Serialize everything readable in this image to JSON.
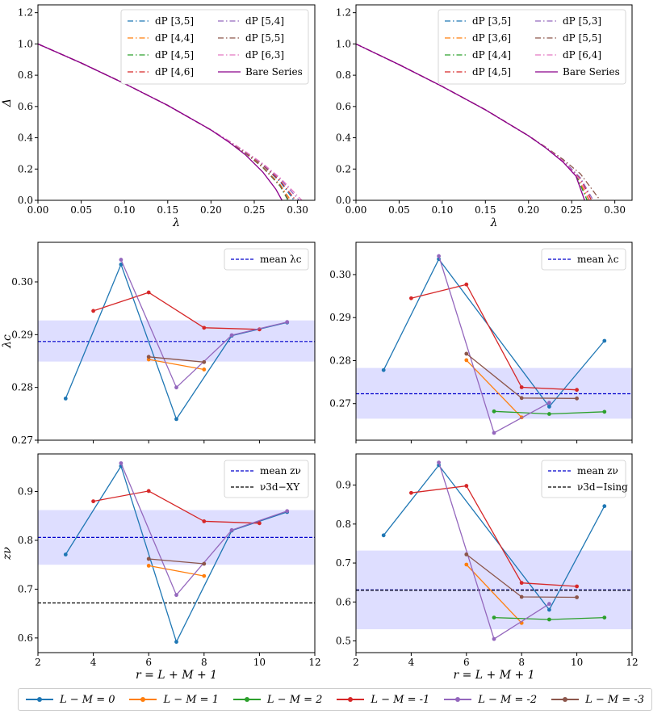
{
  "chart_data": [
    {
      "type": "line",
      "panel": "top-left",
      "xlabel": "λ",
      "ylabel": "Δ",
      "xlim": [
        0,
        0.32
      ],
      "ylim": [
        0,
        1.25
      ],
      "xticks": [
        "0.00",
        "0.05",
        "0.10",
        "0.15",
        "0.20",
        "0.25",
        "0.30"
      ],
      "yticks": [
        "0.0",
        "0.2",
        "0.4",
        "0.6",
        "0.8",
        "1.0",
        "1.2"
      ],
      "legend_position": "top-right",
      "series": [
        {
          "name": "dP [3,5]",
          "color": "#1f77b4",
          "style": "dashdot",
          "x": [
            0,
            0.05,
            0.1,
            0.15,
            0.2,
            0.22,
            0.24,
            0.26,
            0.28,
            0.296
          ],
          "y": [
            1.0,
            0.878,
            0.747,
            0.607,
            0.45,
            0.381,
            0.306,
            0.223,
            0.118,
            0.0
          ]
        },
        {
          "name": "dP [4,4]",
          "color": "#ff7f0e",
          "style": "dashdot",
          "x": [
            0,
            0.05,
            0.1,
            0.15,
            0.2,
            0.22,
            0.24,
            0.26,
            0.28,
            0.292
          ],
          "y": [
            1.0,
            0.878,
            0.747,
            0.607,
            0.45,
            0.379,
            0.302,
            0.213,
            0.1,
            0.0
          ]
        },
        {
          "name": "dP [4,5]",
          "color": "#2ca02c",
          "style": "dashdot",
          "x": [
            0,
            0.05,
            0.1,
            0.15,
            0.2,
            0.22,
            0.24,
            0.26,
            0.28,
            0.289
          ],
          "y": [
            1.0,
            0.878,
            0.747,
            0.607,
            0.45,
            0.378,
            0.3,
            0.209,
            0.09,
            0.0
          ]
        },
        {
          "name": "dP [4,6]",
          "color": "#d62728",
          "style": "dashdot",
          "x": [
            0,
            0.05,
            0.1,
            0.15,
            0.2,
            0.22,
            0.24,
            0.26,
            0.28,
            0.298
          ],
          "y": [
            1.0,
            0.878,
            0.747,
            0.607,
            0.45,
            0.381,
            0.307,
            0.226,
            0.125,
            0.0
          ]
        },
        {
          "name": "dP [5,4]",
          "color": "#9467bd",
          "style": "dashdot",
          "x": [
            0,
            0.05,
            0.1,
            0.15,
            0.2,
            0.22,
            0.24,
            0.26,
            0.28,
            0.302
          ],
          "y": [
            1.0,
            0.878,
            0.747,
            0.607,
            0.45,
            0.382,
            0.309,
            0.23,
            0.136,
            0.0
          ]
        },
        {
          "name": "dP [5,5]",
          "color": "#8c564b",
          "style": "dashdot",
          "x": [
            0,
            0.05,
            0.1,
            0.15,
            0.2,
            0.22,
            0.24,
            0.26,
            0.28,
            0.29
          ],
          "y": [
            1.0,
            0.878,
            0.747,
            0.607,
            0.45,
            0.378,
            0.3,
            0.21,
            0.094,
            0.0
          ]
        },
        {
          "name": "dP [6,3]",
          "color": "#e377c2",
          "style": "dashdot",
          "x": [
            0,
            0.05,
            0.1,
            0.15,
            0.2,
            0.22,
            0.24,
            0.26,
            0.28,
            0.305
          ],
          "y": [
            1.0,
            0.878,
            0.747,
            0.607,
            0.45,
            0.383,
            0.311,
            0.234,
            0.143,
            0.0
          ]
        },
        {
          "name": "Bare Series",
          "color": "#8b008b",
          "style": "solid",
          "x": [
            0,
            0.05,
            0.1,
            0.15,
            0.2,
            0.22,
            0.24,
            0.26,
            0.275,
            0.282
          ],
          "y": [
            1.0,
            0.878,
            0.747,
            0.607,
            0.45,
            0.375,
            0.29,
            0.18,
            0.07,
            0.0
          ]
        }
      ]
    },
    {
      "type": "line",
      "panel": "top-right",
      "xlabel": "λ",
      "ylabel": "",
      "xlim": [
        0,
        0.32
      ],
      "ylim": [
        0,
        1.25
      ],
      "xticks": [
        "0.00",
        "0.05",
        "0.10",
        "0.15",
        "0.20",
        "0.25",
        "0.30"
      ],
      "yticks": [
        "0.0",
        "0.2",
        "0.4",
        "0.6",
        "0.8",
        "1.0",
        "1.2"
      ],
      "legend_position": "top-right",
      "series": [
        {
          "name": "dP [3,5]",
          "color": "#1f77b4",
          "style": "dashdot",
          "x": [
            0,
            0.05,
            0.1,
            0.15,
            0.2,
            0.22,
            0.24,
            0.255,
            0.268
          ],
          "y": [
            1.0,
            0.868,
            0.728,
            0.579,
            0.412,
            0.336,
            0.248,
            0.163,
            0.0
          ]
        },
        {
          "name": "dP [3,6]",
          "color": "#ff7f0e",
          "style": "dashdot",
          "x": [
            0,
            0.05,
            0.1,
            0.15,
            0.2,
            0.22,
            0.24,
            0.255,
            0.27
          ],
          "y": [
            1.0,
            0.868,
            0.728,
            0.579,
            0.412,
            0.337,
            0.25,
            0.168,
            0.0
          ]
        },
        {
          "name": "dP [4,4]",
          "color": "#2ca02c",
          "style": "dashdot",
          "x": [
            0,
            0.05,
            0.1,
            0.15,
            0.2,
            0.22,
            0.24,
            0.255,
            0.268
          ],
          "y": [
            1.0,
            0.868,
            0.728,
            0.579,
            0.412,
            0.336,
            0.248,
            0.163,
            0.0
          ]
        },
        {
          "name": "dP [4,5]",
          "color": "#d62728",
          "style": "dashdot",
          "x": [
            0,
            0.05,
            0.1,
            0.15,
            0.2,
            0.22,
            0.24,
            0.26,
            0.273
          ],
          "y": [
            1.0,
            0.868,
            0.728,
            0.579,
            0.412,
            0.338,
            0.253,
            0.14,
            0.0
          ]
        },
        {
          "name": "dP [5,3]",
          "color": "#9467bd",
          "style": "dashdot",
          "x": [
            0,
            0.05,
            0.1,
            0.15,
            0.2,
            0.22,
            0.24,
            0.26,
            0.275
          ],
          "y": [
            1.0,
            0.868,
            0.728,
            0.579,
            0.412,
            0.338,
            0.255,
            0.145,
            0.0
          ]
        },
        {
          "name": "dP [5,5]",
          "color": "#8c564b",
          "style": "dashdot",
          "x": [
            0,
            0.05,
            0.1,
            0.15,
            0.2,
            0.22,
            0.24,
            0.26,
            0.283
          ],
          "y": [
            1.0,
            0.868,
            0.728,
            0.579,
            0.412,
            0.34,
            0.262,
            0.17,
            0.0
          ]
        },
        {
          "name": "dP [6,4]",
          "color": "#e377c2",
          "style": "dashdot",
          "x": [
            0,
            0.05,
            0.1,
            0.15,
            0.2,
            0.22,
            0.24,
            0.26,
            0.271
          ],
          "y": [
            1.0,
            0.868,
            0.728,
            0.579,
            0.412,
            0.337,
            0.251,
            0.13,
            0.0
          ]
        },
        {
          "name": "Bare Series",
          "color": "#8b008b",
          "style": "solid",
          "x": [
            0,
            0.05,
            0.1,
            0.15,
            0.2,
            0.22,
            0.24,
            0.255,
            0.265
          ],
          "y": [
            1.0,
            0.868,
            0.728,
            0.579,
            0.412,
            0.335,
            0.245,
            0.155,
            0.0
          ]
        }
      ]
    },
    {
      "type": "line",
      "panel": "middle-left",
      "xlabel": "",
      "ylabel": "λc",
      "xlim": [
        2,
        12
      ],
      "ylim": [
        0.27,
        0.3075
      ],
      "xticks": [],
      "yticks": [
        "0.27",
        "0.28",
        "0.29",
        "0.30"
      ],
      "legend_position": "top-right",
      "mean_line": {
        "label": "mean λc",
        "value": 0.2887,
        "band": [
          0.2849,
          0.2927
        ]
      },
      "series": [
        {
          "name": "L − M = 0",
          "color": "#1f77b4",
          "x": [
            3,
            5,
            7,
            9,
            11
          ],
          "y": [
            0.2779,
            0.3033,
            0.274,
            0.2898,
            0.2923
          ]
        },
        {
          "name": "L − M = 1",
          "color": "#ff7f0e",
          "x": [
            6,
            8
          ],
          "y": [
            0.2853,
            0.2834
          ]
        },
        {
          "name": "L − M = -1",
          "color": "#d62728",
          "x": [
            4,
            6,
            8,
            10
          ],
          "y": [
            0.2945,
            0.298,
            0.2913,
            0.291
          ]
        },
        {
          "name": "L − M = -2",
          "color": "#9467bd",
          "x": [
            5,
            7,
            9,
            11
          ],
          "y": [
            0.3042,
            0.28,
            0.2899,
            0.2924
          ]
        },
        {
          "name": "L − M = -3",
          "color": "#8c564b",
          "x": [
            6,
            8
          ],
          "y": [
            0.2858,
            0.2848
          ]
        }
      ]
    },
    {
      "type": "line",
      "panel": "middle-right",
      "xlabel": "",
      "ylabel": "",
      "xlim": [
        2,
        12
      ],
      "ylim": [
        0.2615,
        0.3075
      ],
      "xticks": [],
      "yticks": [
        "0.27",
        "0.28",
        "0.29",
        "0.30"
      ],
      "legend_position": "top-right",
      "mean_line": {
        "label": "mean λc",
        "value": 0.2723,
        "band": [
          0.2665,
          0.2783
        ]
      },
      "series": [
        {
          "name": "L − M = 0",
          "color": "#1f77b4",
          "x": [
            3,
            5,
            9,
            11
          ],
          "y": [
            0.2778,
            0.3036,
            0.2693,
            0.2846
          ]
        },
        {
          "name": "L − M = 1",
          "color": "#ff7f0e",
          "x": [
            6,
            8
          ],
          "y": [
            0.2801,
            0.2668
          ]
        },
        {
          "name": "L − M = 2",
          "color": "#2ca02c",
          "x": [
            7,
            9,
            11
          ],
          "y": [
            0.2682,
            0.2676,
            0.2681
          ]
        },
        {
          "name": "L − M = -1",
          "color": "#d62728",
          "x": [
            4,
            6,
            8,
            10
          ],
          "y": [
            0.2945,
            0.2977,
            0.2738,
            0.2732
          ]
        },
        {
          "name": "L − M = -2",
          "color": "#9467bd",
          "x": [
            5,
            7,
            9
          ],
          "y": [
            0.3043,
            0.2632,
            0.2702
          ]
        },
        {
          "name": "L − M = -3",
          "color": "#8c564b",
          "x": [
            6,
            8,
            10
          ],
          "y": [
            0.2816,
            0.2713,
            0.2712
          ]
        }
      ]
    },
    {
      "type": "line",
      "panel": "bottom-left",
      "xlabel": "r = L + M + 1",
      "ylabel": "zν",
      "xlim": [
        2,
        12
      ],
      "ylim": [
        0.57,
        0.977
      ],
      "xticks": [
        "2",
        "4",
        "6",
        "8",
        "10",
        "12"
      ],
      "yticks": [
        "0.6",
        "0.7",
        "0.8",
        "0.9"
      ],
      "legend_position": "top-right",
      "mean_line": {
        "label": "mean zν",
        "value": 0.806,
        "band": [
          0.75,
          0.862
        ]
      },
      "ref_line": {
        "label": "ν3d−XY",
        "value": 0.6717
      },
      "series": [
        {
          "name": "L − M = 0",
          "color": "#1f77b4",
          "x": [
            3,
            5,
            7,
            9,
            11
          ],
          "y": [
            0.771,
            0.952,
            0.592,
            0.82,
            0.858
          ]
        },
        {
          "name": "L − M = 1",
          "color": "#ff7f0e",
          "x": [
            6,
            8
          ],
          "y": [
            0.748,
            0.727
          ]
        },
        {
          "name": "L − M = -1",
          "color": "#d62728",
          "x": [
            4,
            6,
            8,
            10
          ],
          "y": [
            0.88,
            0.901,
            0.839,
            0.835
          ]
        },
        {
          "name": "L − M = -2",
          "color": "#9467bd",
          "x": [
            5,
            7,
            9,
            11
          ],
          "y": [
            0.958,
            0.688,
            0.821,
            0.86
          ]
        },
        {
          "name": "L − M = -3",
          "color": "#8c564b",
          "x": [
            6,
            8
          ],
          "y": [
            0.762,
            0.752
          ]
        }
      ]
    },
    {
      "type": "line",
      "panel": "bottom-right",
      "xlabel": "r = L + M + 1",
      "ylabel": "",
      "xlim": [
        2,
        12
      ],
      "ylim": [
        0.47,
        0.98
      ],
      "xticks": [
        "2",
        "4",
        "6",
        "8",
        "10",
        "12"
      ],
      "yticks": [
        "0.5",
        "0.6",
        "0.7",
        "0.8",
        "0.9"
      ],
      "legend_position": "top-right",
      "mean_line": {
        "label": "mean zν",
        "value": 0.631,
        "band": [
          0.53,
          0.732
        ]
      },
      "ref_line": {
        "label": "ν3d−Ising",
        "value": 0.63
      },
      "series": [
        {
          "name": "L − M = 0",
          "color": "#1f77b4",
          "x": [
            3,
            5,
            9,
            11
          ],
          "y": [
            0.771,
            0.951,
            0.58,
            0.846
          ]
        },
        {
          "name": "L − M = 1",
          "color": "#ff7f0e",
          "x": [
            6,
            8
          ],
          "y": [
            0.696,
            0.546
          ]
        },
        {
          "name": "L − M = 2",
          "color": "#2ca02c",
          "x": [
            7,
            9,
            11
          ],
          "y": [
            0.56,
            0.555,
            0.56
          ]
        },
        {
          "name": "L − M = -1",
          "color": "#d62728",
          "x": [
            4,
            6,
            8,
            10
          ],
          "y": [
            0.88,
            0.898,
            0.649,
            0.64
          ]
        },
        {
          "name": "L − M = -2",
          "color": "#9467bd",
          "x": [
            5,
            7,
            9
          ],
          "y": [
            0.958,
            0.505,
            0.595
          ]
        },
        {
          "name": "L − M = -3",
          "color": "#8c564b",
          "x": [
            6,
            8,
            10
          ],
          "y": [
            0.722,
            0.613,
            0.612
          ]
        }
      ]
    }
  ],
  "bottom_legend": [
    {
      "label": "L − M = 0",
      "color": "#1f77b4"
    },
    {
      "label": "L − M = 1",
      "color": "#ff7f0e"
    },
    {
      "label": "L − M = 2",
      "color": "#2ca02c"
    },
    {
      "label": "L − M = -1",
      "color": "#d62728"
    },
    {
      "label": "L − M = -2",
      "color": "#9467bd"
    },
    {
      "label": "L − M = -3",
      "color": "#8c564b"
    }
  ]
}
